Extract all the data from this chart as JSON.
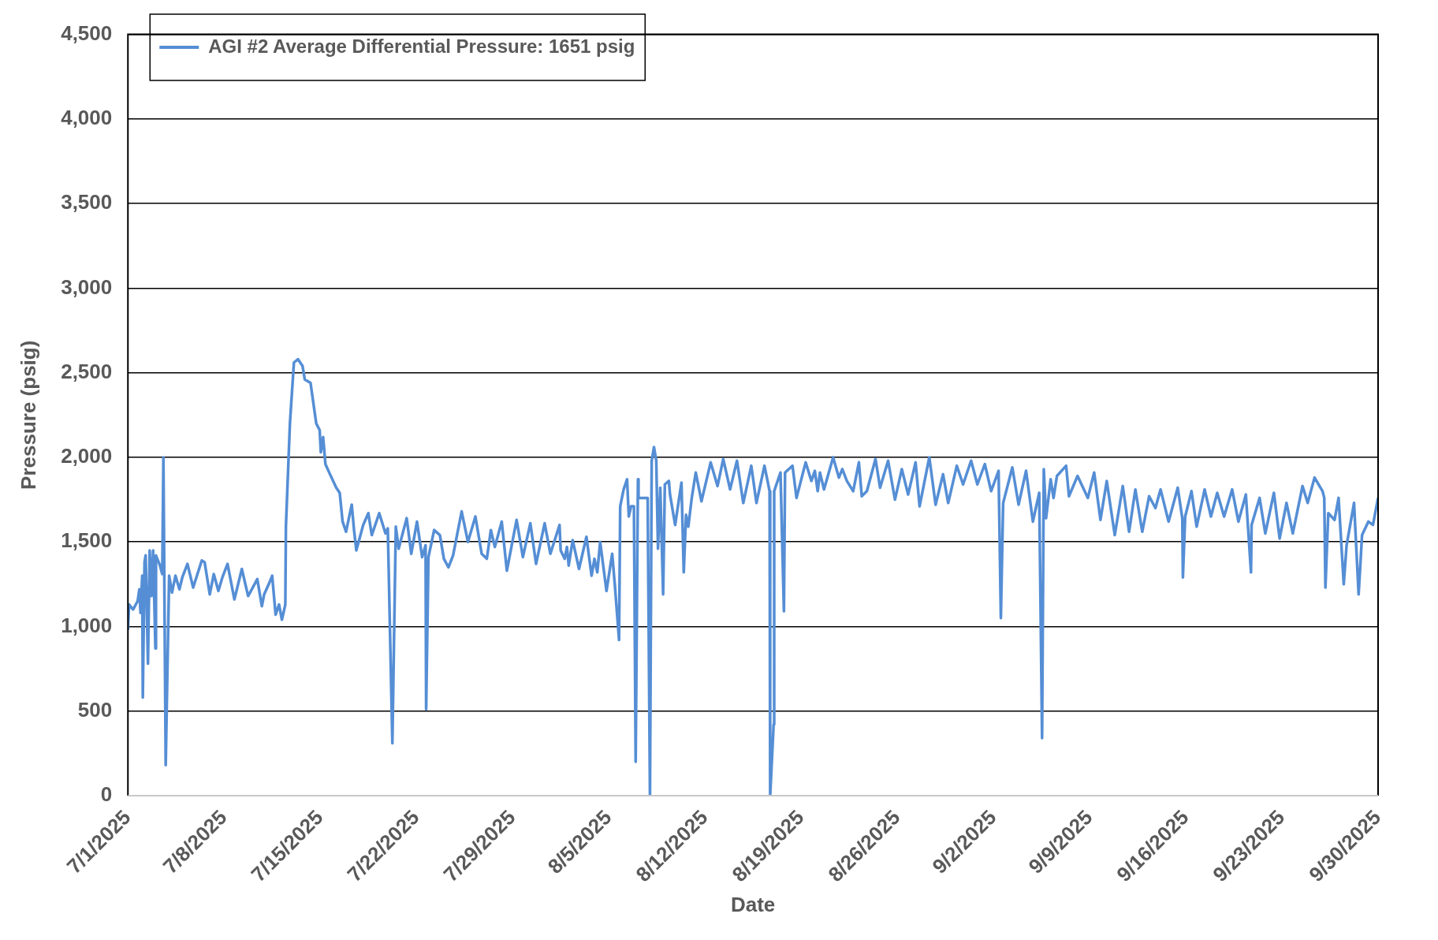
{
  "chart_data": {
    "type": "line",
    "xlabel": "Date",
    "ylabel": "Pressure (psig)",
    "legend": "top left",
    "grid": "y",
    "marker": "none",
    "line_style": "solid",
    "ylim": [
      0,
      4500
    ],
    "yticks": [
      0,
      500,
      {
        "value": 1000,
        "label": "1,000"
      },
      {
        "value": 1500,
        "label": "1,500"
      },
      {
        "value": 2000,
        "label": "2,000"
      },
      {
        "value": 2500,
        "label": "2,500"
      },
      {
        "value": 3000,
        "label": "3,000"
      },
      {
        "value": 3500,
        "label": "3,500"
      },
      {
        "value": 4000,
        "label": "4,000"
      },
      {
        "value": 4500,
        "label": "4,500"
      }
    ],
    "xlim": [
      "2025-07-01",
      "2025-09-30"
    ],
    "xticks": [
      {
        "value": "2025-07-01",
        "label": "7/1/2025"
      },
      {
        "value": "2025-07-08",
        "label": "7/8/2025"
      },
      {
        "value": "2025-07-15",
        "label": "7/15/2025"
      },
      {
        "value": "2025-07-22",
        "label": "7/22/2025"
      },
      {
        "value": "2025-07-29",
        "label": "7/29/2025"
      },
      {
        "value": "2025-08-05",
        "label": "8/5/2025"
      },
      {
        "value": "2025-08-12",
        "label": "8/12/2025"
      },
      {
        "value": "2025-08-19",
        "label": "8/19/2025"
      },
      {
        "value": "2025-08-26",
        "label": "8/26/2025"
      },
      {
        "value": "2025-09-02",
        "label": "9/2/2025"
      },
      {
        "value": "2025-09-09",
        "label": "9/9/2025"
      },
      {
        "value": "2025-09-16",
        "label": "9/16/2025"
      },
      {
        "value": "2025-09-23",
        "label": "9/23/2025"
      },
      {
        "value": "2025-09-30",
        "label": "9/30/2025"
      }
    ],
    "series": [
      {
        "name": "AGI #2 Average Differential Pressure: 1651 psig",
        "color": "#558ed5",
        "x": [
          "2025-07-01T00:00",
          "2025-07-01T02:00",
          "2025-07-01T09:00",
          "2025-07-01T17:00",
          "2025-07-01T20:00",
          "2025-07-01T22:00",
          "2025-07-02T01:00",
          "2025-07-02T02:00",
          "2025-07-02T05:00",
          "2025-07-02T07:00",
          "2025-07-02T11:00",
          "2025-07-02T14:00",
          "2025-07-02T17:00",
          "2025-07-02T20:00",
          "2025-07-03T00:00",
          "2025-07-03T01:00",
          "2025-07-03T08:00",
          "2025-07-03T12:00",
          "2025-07-03T14:00",
          "2025-07-03T18:00",
          "2025-07-04T00:00",
          "2025-07-04T05:00",
          "2025-07-04T11:00",
          "2025-07-04T18:00",
          "2025-07-04T23:00",
          "2025-07-05T08:00",
          "2025-07-05T18:00",
          "2025-07-06T09:00",
          "2025-07-06T14:00",
          "2025-07-06T23:00",
          "2025-07-07T06:00",
          "2025-07-07T14:00",
          "2025-07-07T21:00",
          "2025-07-08T06:00",
          "2025-07-08T18:00",
          "2025-07-09T07:00",
          "2025-07-09T18:00",
          "2025-07-10T10:00",
          "2025-07-10T18:00",
          "2025-07-10T22:00",
          "2025-07-11T06:00",
          "2025-07-11T12:00",
          "2025-07-11T18:00",
          "2025-07-12T00:00",
          "2025-07-12T05:00",
          "2025-07-12T11:00",
          "2025-07-12T12:00",
          "2025-07-12T19:00",
          "2025-07-13T02:00",
          "2025-07-13T09:00",
          "2025-07-13T17:00",
          "2025-07-13T21:00",
          "2025-07-14T07:00",
          "2025-07-14T17:00",
          "2025-07-14T23:00",
          "2025-07-15T01:00",
          "2025-07-15T05:00",
          "2025-07-15T09:00",
          "2025-07-15T17:00",
          "2025-07-16T04:00",
          "2025-07-16T10:00",
          "2025-07-16T15:00",
          "2025-07-16T21:00",
          "2025-07-17T07:00",
          "2025-07-17T11:00",
          "2025-07-17T15:00",
          "2025-07-18T03:00",
          "2025-07-18T12:00",
          "2025-07-18T18:00",
          "2025-07-19T07:00",
          "2025-07-19T18:00",
          "2025-07-19T22:00",
          "2025-07-20T06:00",
          "2025-07-20T12:00",
          "2025-07-20T17:00",
          "2025-07-21T07:00",
          "2025-07-21T15:00",
          "2025-07-22T01:00",
          "2025-07-22T10:00",
          "2025-07-22T16:00",
          "2025-07-22T17:00",
          "2025-07-22T21:00",
          "2025-07-23T07:00",
          "2025-07-23T17:00",
          "2025-07-24T00:00",
          "2025-07-24T08:00",
          "2025-07-24T16:00",
          "2025-07-25T07:00",
          "2025-07-25T18:00",
          "2025-07-26T07:00",
          "2025-07-26T18:00",
          "2025-07-27T03:00",
          "2025-07-27T10:00",
          "2025-07-27T17:00",
          "2025-07-28T05:00",
          "2025-07-28T14:00",
          "2025-07-29T07:00",
          "2025-07-29T18:00",
          "2025-07-30T07:00",
          "2025-07-30T17:00",
          "2025-07-31T08:00",
          "2025-07-31T18:00",
          "2025-08-01T10:00",
          "2025-08-01T12:00",
          "2025-08-01T19:00",
          "2025-08-01T23:00",
          "2025-08-02T02:00",
          "2025-08-02T09:00",
          "2025-08-02T20:00",
          "2025-08-03T09:00",
          "2025-08-03T18:00",
          "2025-08-03T23:00",
          "2025-08-04T04:00",
          "2025-08-04T09:00",
          "2025-08-04T20:00",
          "2025-08-05T06:00",
          "2025-08-05T11:00",
          "2025-08-05T18:00",
          "2025-08-05T20:00",
          "2025-08-06T02:00",
          "2025-08-06T08:00",
          "2025-08-06T11:00",
          "2025-08-06T15:00",
          "2025-08-06T20:00",
          "2025-08-06T23:00",
          "2025-08-07T03:00",
          "2025-08-07T04:00",
          "2025-08-07T20:00",
          "2025-08-08T00:00",
          "2025-08-08T03:00",
          "2025-08-08T07:00",
          "2025-08-08T11:00",
          "2025-08-08T14:00",
          "2025-08-08T18:00",
          "2025-08-08T23:00",
          "2025-08-09T02:00",
          "2025-08-09T09:00",
          "2025-08-09T11:00",
          "2025-08-09T20:00",
          "2025-08-10T07:00",
          "2025-08-10T11:00",
          "2025-08-10T15:00",
          "2025-08-10T19:00",
          "2025-08-11T01:00",
          "2025-08-11T08:00",
          "2025-08-11T18:00",
          "2025-08-12T10:00",
          "2025-08-12T22:00",
          "2025-08-13T08:00",
          "2025-08-13T20:00",
          "2025-08-14T08:00",
          "2025-08-14T19:00",
          "2025-08-15T09:00",
          "2025-08-15T18:00",
          "2025-08-16T08:00",
          "2025-08-16T17:00",
          "2025-08-16T18:00",
          "2025-08-17T00:00",
          "2025-08-17T01:00",
          "2025-08-17T09:00",
          "2025-08-17T12:00",
          "2025-08-17T18:00",
          "2025-08-17T20:00",
          "2025-08-18T09:00",
          "2025-08-18T16:00",
          "2025-08-19T08:00",
          "2025-08-19T18:00",
          "2025-08-20T00:00",
          "2025-08-20T05:00",
          "2025-08-20T09:00",
          "2025-08-20T16:00",
          "2025-08-21T08:00",
          "2025-08-21T18:00",
          "2025-08-22T00:00",
          "2025-08-22T08:00",
          "2025-08-22T19:00",
          "2025-08-23T05:00",
          "2025-08-23T10:00",
          "2025-08-23T19:00",
          "2025-08-24T10:00",
          "2025-08-24T18:00",
          "2025-08-25T08:00",
          "2025-08-25T20:00",
          "2025-08-26T08:00",
          "2025-08-26T19:00",
          "2025-08-27T08:00",
          "2025-08-27T15:00",
          "2025-08-28T08:00",
          "2025-08-28T19:00",
          "2025-08-29T08:00",
          "2025-08-29T17:00",
          "2025-08-30T08:00",
          "2025-08-30T19:00",
          "2025-08-31T09:00",
          "2025-08-31T20:00",
          "2025-09-01T09:00",
          "2025-09-01T20:00",
          "2025-09-02T09:00",
          "2025-09-02T13:00",
          "2025-09-02T17:00",
          "2025-09-03T09:00",
          "2025-09-03T20:00",
          "2025-09-04T09:00",
          "2025-09-04T21:00",
          "2025-09-05T08:00",
          "2025-09-05T13:00",
          "2025-09-05T16:00",
          "2025-09-05T20:00",
          "2025-09-06T04:00",
          "2025-09-06T09:00",
          "2025-09-06T15:00",
          "2025-09-07T07:00",
          "2025-09-07T12:00",
          "2025-09-08T03:00",
          "2025-09-08T21:00",
          "2025-09-09T08:00",
          "2025-09-09T19:00",
          "2025-09-10T06:00",
          "2025-09-10T20:00",
          "2025-09-11T10:00",
          "2025-09-11T21:00",
          "2025-09-12T08:00",
          "2025-09-12T20:00",
          "2025-09-13T08:00",
          "2025-09-13T19:00",
          "2025-09-14T04:00",
          "2025-09-14T18:00",
          "2025-09-15T10:00",
          "2025-09-15T18:00",
          "2025-09-15T19:00",
          "2025-09-15T23:00",
          "2025-09-16T10:00",
          "2025-09-16T19:00",
          "2025-09-17T09:00",
          "2025-09-17T20:00",
          "2025-09-18T07:00",
          "2025-09-18T19:00",
          "2025-09-19T09:00",
          "2025-09-19T20:00",
          "2025-09-20T09:00",
          "2025-09-20T18:00",
          "2025-09-20T19:00",
          "2025-09-21T09:00",
          "2025-09-21T19:00",
          "2025-09-22T10:00",
          "2025-09-22T20:00",
          "2025-09-23T08:00",
          "2025-09-23T19:00",
          "2025-09-24T12:00",
          "2025-09-24T21:00",
          "2025-09-25T09:00",
          "2025-09-25T23:00",
          "2025-09-26T02:00",
          "2025-09-26T04:00",
          "2025-09-26T09:00",
          "2025-09-26T20:00",
          "2025-09-27T03:00",
          "2025-09-27T12:00",
          "2025-09-27T17:00",
          "2025-09-28T06:00",
          "2025-09-28T14:00",
          "2025-09-28T20:00",
          "2025-09-29T07:00",
          "2025-09-29T15:00",
          "2025-09-30T00:00"
        ],
        "values": [
          980,
          1130,
          1100,
          1150,
          1220,
          1080,
          1300,
          580,
          1380,
          1420,
          780,
          1450,
          1180,
          1450,
          870,
          1420,
          1360,
          1310,
          2000,
          180,
          1300,
          1200,
          1300,
          1220,
          1290,
          1370,
          1230,
          1390,
          1380,
          1190,
          1310,
          1210,
          1290,
          1370,
          1160,
          1340,
          1180,
          1280,
          1120,
          1190,
          1250,
          1300,
          1070,
          1130,
          1040,
          1130,
          1590,
          2200,
          2560,
          2580,
          2540,
          2460,
          2440,
          2200,
          2160,
          2030,
          2120,
          1960,
          1900,
          1820,
          1790,
          1620,
          1560,
          1720,
          1570,
          1450,
          1600,
          1670,
          1540,
          1670,
          1550,
          1580,
          310,
          1590,
          1460,
          1640,
          1430,
          1620,
          1410,
          1480,
          510,
          1410,
          1570,
          1540,
          1400,
          1350,
          1420,
          1680,
          1500,
          1650,
          1430,
          1400,
          1570,
          1470,
          1620,
          1330,
          1630,
          1410,
          1610,
          1370,
          1610,
          1430,
          1600,
          1450,
          1400,
          1470,
          1360,
          1510,
          1340,
          1530,
          1300,
          1400,
          1320,
          1500,
          1210,
          1430,
          1230,
          920,
          1710,
          1810,
          1870,
          1650,
          1710,
          1710,
          200,
          1870,
          1760,
          1760,
          0,
          1980,
          2060,
          1980,
          1460,
          1820,
          1190,
          1840,
          1860,
          1780,
          1600,
          1850,
          1320,
          1660,
          1590,
          1760,
          1910,
          1740,
          1970,
          1830,
          1990,
          1810,
          1980,
          1730,
          1950,
          1730,
          1950,
          1800,
          0,
          420,
          1800,
          1880,
          1910,
          1090,
          1910,
          1950,
          1760,
          1970,
          1860,
          1920,
          1800,
          1910,
          1810,
          2000,
          1880,
          1930,
          1860,
          1800,
          1970,
          1770,
          1800,
          1990,
          1820,
          1980,
          1750,
          1930,
          1780,
          1970,
          1710,
          2000,
          1720,
          1900,
          1730,
          1950,
          1840,
          1980,
          1840,
          1960,
          1800,
          1920,
          1050,
          1730,
          1940,
          1720,
          1920,
          1620,
          1790,
          340,
          1930,
          1640,
          1870,
          1760,
          1890,
          1950,
          1770,
          1890,
          1760,
          1910,
          1630,
          1860,
          1540,
          1830,
          1560,
          1810,
          1560,
          1770,
          1700,
          1810,
          1620,
          1820,
          1640,
          1290,
          1650,
          1800,
          1590,
          1810,
          1650,
          1790,
          1650,
          1810,
          1620,
          1780,
          1320,
          1600,
          1760,
          1550,
          1790,
          1520,
          1730,
          1550,
          1830,
          1730,
          1880,
          1800,
          1760,
          1230,
          1670,
          1630,
          1760,
          1250,
          1480,
          1730,
          1190,
          1540,
          1620,
          1600,
          1760
        ]
      }
    ]
  }
}
